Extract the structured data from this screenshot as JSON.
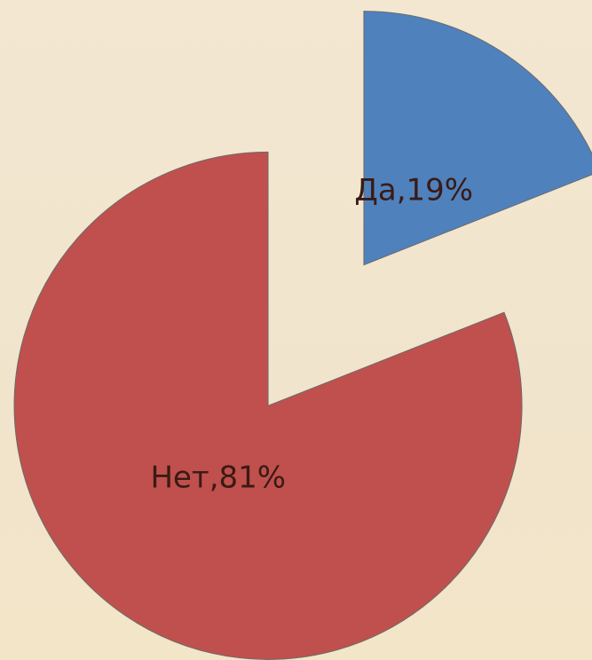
{
  "chart_data": {
    "type": "pie",
    "values": [
      19,
      81
    ],
    "value_labels": [
      "Да,19%",
      "Нет,81%"
    ],
    "colors": [
      "#4f81bd",
      "#c0504d"
    ],
    "exploded": true,
    "start_angle": "top",
    "direction": "clockwise"
  }
}
